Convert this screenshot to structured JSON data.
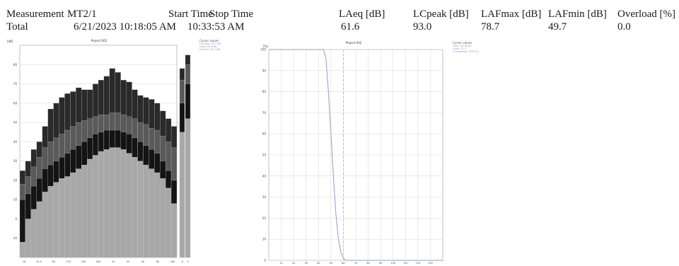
{
  "header": {
    "measurement_label": "Measurement",
    "measurement_value": "MT2/1",
    "start_time_label": "Start Time",
    "stop_time_label": "Stop Time",
    "total_label": "Total",
    "start_time_value": "6/21/2023 10:18:05 AM",
    "stop_time_value": "10:33:53 AM"
  },
  "metrics": [
    {
      "label": "LAeq [dB]",
      "value": "61.6"
    },
    {
      "label": "LCpeak [dB]",
      "value": "93.0"
    },
    {
      "label": "LAFmax [dB]",
      "value": "78.7"
    },
    {
      "label": "LAFmin [dB]",
      "value": "49.7"
    },
    {
      "label": "Overload [%]",
      "value": "0.0"
    }
  ],
  "chart_data": [
    {
      "type": "bar",
      "title": "Project 002",
      "ylabel": "[dB]",
      "ylim": [
        -20,
        90
      ],
      "y_ticks": [
        -10,
        0,
        10,
        20,
        30,
        40,
        50,
        60,
        70,
        80
      ],
      "x_tick_labels": [
        "16",
        "31.5",
        "63",
        "125",
        "250",
        "500",
        "1k",
        "2k",
        "4k",
        "8k",
        "16k",
        "A",
        "C"
      ],
      "series": [
        {
          "values": [
            25,
            30,
            36,
            40,
            48,
            57,
            60,
            63,
            65,
            66,
            68,
            67,
            67,
            70,
            72,
            74,
            78,
            76,
            72,
            71,
            67,
            64,
            63,
            62,
            60,
            56,
            52,
            48
          ]
        },
        {
          "values": [
            18,
            22,
            27,
            32,
            37,
            40,
            42,
            44,
            46,
            48,
            50,
            51,
            52,
            53,
            54,
            54,
            55,
            55,
            54,
            53,
            52,
            50,
            49,
            47,
            46,
            43,
            40,
            37
          ]
        },
        {
          "values": [
            10,
            13,
            17,
            21,
            26,
            28,
            30,
            32,
            34,
            36,
            38,
            40,
            42,
            44,
            45,
            46,
            46,
            46,
            45,
            44,
            42,
            40,
            38,
            36,
            34,
            30,
            25,
            20
          ]
        },
        {
          "values": [
            -12,
            0,
            5,
            9,
            14,
            17,
            19,
            21,
            22,
            24,
            26,
            28,
            31,
            33,
            35,
            36,
            37,
            37,
            36,
            34,
            32,
            30,
            28,
            26,
            24,
            21,
            16,
            8
          ]
        }
      ],
      "summary_bars": [
        {
          "values": [
            78,
            72,
            60,
            45
          ]
        },
        {
          "values": [
            85,
            80,
            70,
            52
          ]
        }
      ],
      "legend_title": "Cursor values",
      "legend_lines": [
        "LAFmax: 78.7 dB",
        "LAeq: 61.6 dB",
        "LAFmin: 49.7 dB"
      ]
    },
    {
      "type": "line",
      "title": "Project 002",
      "ylabel": "[%]",
      "ylim": [
        0,
        100
      ],
      "xlim": [
        0,
        140
      ],
      "y_ticks": [
        0,
        10,
        20,
        30,
        40,
        50,
        60,
        70,
        80,
        90,
        100
      ],
      "x_ticks": [
        10,
        20,
        30,
        40,
        50,
        60,
        70,
        80,
        90,
        100,
        110,
        120,
        130
      ],
      "series": [
        {
          "points": [
            [
              0,
              100
            ],
            [
              44,
              100
            ],
            [
              46,
              96
            ],
            [
              48,
              80
            ],
            [
              50,
              60
            ],
            [
              52,
              40
            ],
            [
              54,
              22
            ],
            [
              56,
              10
            ],
            [
              58,
              4
            ],
            [
              60,
              1
            ],
            [
              62,
              0
            ],
            [
              140,
              0
            ]
          ]
        }
      ],
      "cursor_x": 60,
      "legend_title": "Cursor values",
      "legend_lines": [
        "Time: 10:33:53",
        "Level: 71.5",
        "Cumulative: 100.0 %"
      ]
    }
  ],
  "colors": {
    "bar_dark": "#2a2a2a",
    "bar_mid": "#5a5a5a",
    "bar_black": "#141414",
    "bar_light": "#a8a8a8",
    "grid": "#d6d6d6",
    "line": "#8aa2cc",
    "cursor": "#9aa8c8"
  }
}
